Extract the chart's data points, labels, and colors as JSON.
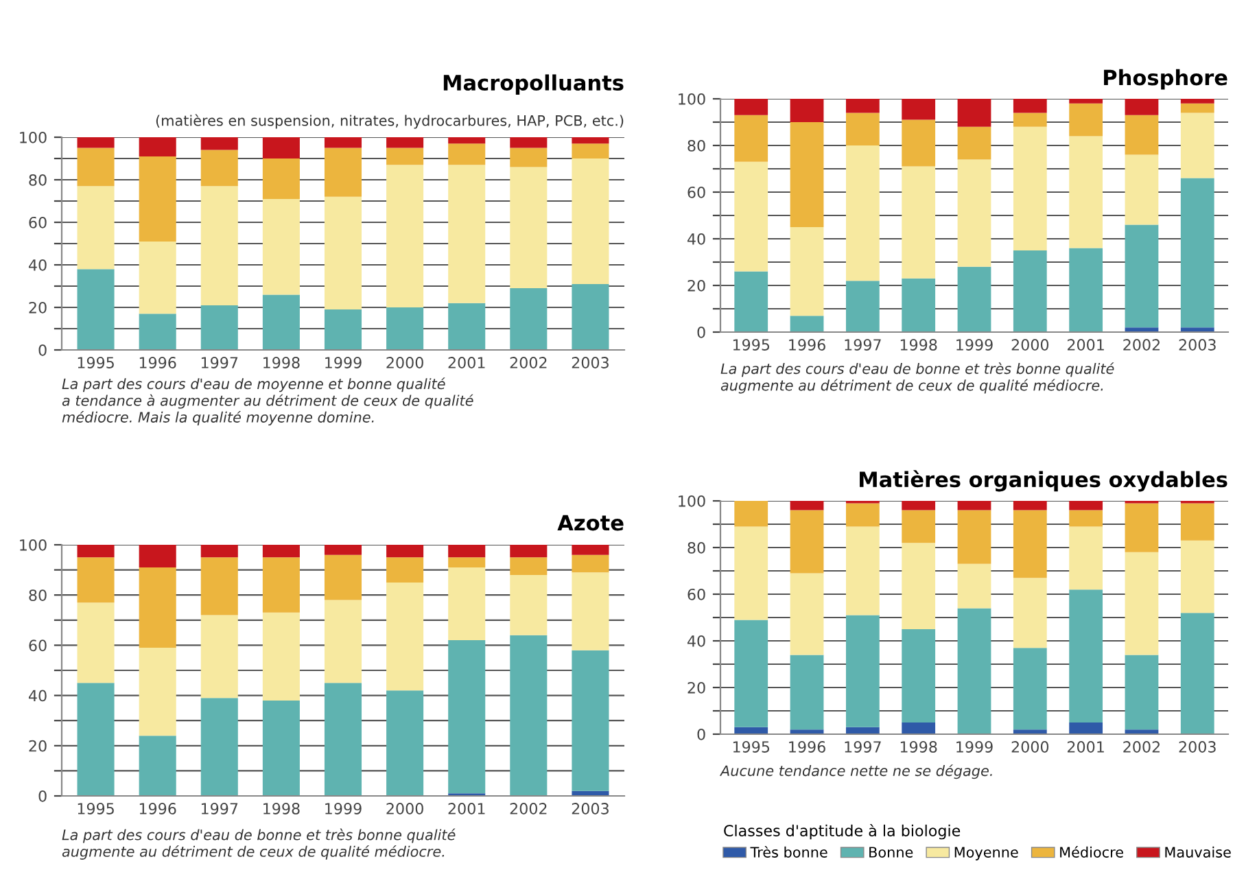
{
  "chart_data": [
    {
      "type": "bar",
      "stacked": true,
      "title": "Macropolluants",
      "subtitle": "(matières en suspension, nitrates, hydrocarbures, HAP, PCB, etc.)",
      "categories": [
        "1995",
        "1996",
        "1997",
        "1998",
        "1999",
        "2000",
        "2001",
        "2002",
        "2003"
      ],
      "ylim": [
        0,
        100
      ],
      "yticks": [
        0,
        {
          "value": 10,
          "label": null
        },
        20,
        {
          "value": 30,
          "label": null
        },
        40,
        {
          "value": 50,
          "label": null
        },
        60,
        {
          "value": 70,
          "label": null
        },
        80,
        {
          "value": 90,
          "label": null
        },
        100
      ],
      "grid": "y",
      "legend": false,
      "series": [
        {
          "color": "#2f5aa8",
          "values": [
            0,
            0,
            0,
            0,
            0,
            0,
            0,
            0,
            0
          ]
        },
        {
          "color": "#5fb3b0",
          "values": [
            38,
            17,
            21,
            26,
            19,
            20,
            22,
            29,
            31
          ]
        },
        {
          "color": "#f7e9a0",
          "values": [
            39,
            34,
            56,
            45,
            53,
            67,
            65,
            57,
            59
          ]
        },
        {
          "color": "#ecb53e",
          "values": [
            18,
            40,
            17,
            19,
            23,
            8,
            10,
            9,
            7
          ]
        },
        {
          "color": "#c8161d",
          "values": [
            5,
            9,
            6,
            10,
            5,
            5,
            3,
            5,
            3
          ]
        }
      ],
      "annotations": [
        "La part des cours d'eau de moyenne et bonne qualité\na tendance à augmenter au détriment de ceux de qualité\nmédiocre. Mais la qualité moyenne domine."
      ]
    },
    {
      "type": "bar",
      "stacked": true,
      "title": "Phosphore",
      "categories": [
        "1995",
        "1996",
        "1997",
        "1998",
        "1999",
        "2000",
        "2001",
        "2002",
        "2003"
      ],
      "ylim": [
        0,
        100
      ],
      "yticks": [
        0,
        {
          "value": 10,
          "label": null
        },
        20,
        {
          "value": 30,
          "label": null
        },
        40,
        {
          "value": 50,
          "label": null
        },
        60,
        {
          "value": 70,
          "label": null
        },
        80,
        {
          "value": 90,
          "label": null
        },
        100
      ],
      "grid": "y",
      "legend": false,
      "series": [
        {
          "color": "#2f5aa8",
          "values": [
            0,
            0,
            0,
            0,
            0,
            0,
            0,
            2,
            2
          ]
        },
        {
          "color": "#5fb3b0",
          "values": [
            26,
            7,
            22,
            23,
            28,
            35,
            36,
            44,
            64
          ]
        },
        {
          "color": "#f7e9a0",
          "values": [
            47,
            38,
            58,
            48,
            46,
            53,
            48,
            30,
            28
          ]
        },
        {
          "color": "#ecb53e",
          "values": [
            20,
            45,
            14,
            20,
            14,
            6,
            14,
            17,
            4
          ]
        },
        {
          "color": "#c8161d",
          "values": [
            7,
            10,
            6,
            9,
            12,
            6,
            2,
            7,
            2
          ]
        }
      ],
      "annotations": [
        "La part des cours d'eau de bonne et très bonne qualité\naugmente au détriment de ceux de qualité médiocre."
      ]
    },
    {
      "type": "bar",
      "stacked": true,
      "title": "Azote",
      "categories": [
        "1995",
        "1996",
        "1997",
        "1998",
        "1999",
        "2000",
        "2001",
        "2002",
        "2003"
      ],
      "ylim": [
        0,
        100
      ],
      "yticks": [
        0,
        {
          "value": 10,
          "label": null
        },
        20,
        {
          "value": 30,
          "label": null
        },
        40,
        {
          "value": 50,
          "label": null
        },
        60,
        {
          "value": 70,
          "label": null
        },
        80,
        {
          "value": 90,
          "label": null
        },
        100
      ],
      "grid": "y",
      "legend": false,
      "series": [
        {
          "color": "#2f5aa8",
          "values": [
            0,
            0,
            0,
            0,
            0,
            0,
            1,
            0,
            2
          ]
        },
        {
          "color": "#5fb3b0",
          "values": [
            45,
            24,
            39,
            38,
            45,
            42,
            61,
            64,
            56
          ]
        },
        {
          "color": "#f7e9a0",
          "values": [
            32,
            35,
            33,
            35,
            33,
            43,
            29,
            24,
            31
          ]
        },
        {
          "color": "#ecb53e",
          "values": [
            18,
            32,
            23,
            22,
            18,
            10,
            4,
            7,
            7
          ]
        },
        {
          "color": "#c8161d",
          "values": [
            5,
            9,
            5,
            5,
            4,
            5,
            5,
            5,
            4
          ]
        }
      ],
      "annotations": [
        "La part des cours d'eau de bonne et très bonne qualité\naugmente au détriment de ceux de qualité médiocre."
      ]
    },
    {
      "type": "bar",
      "stacked": true,
      "title": "Matières organiques oxydables",
      "categories": [
        "1995",
        "1996",
        "1997",
        "1998",
        "1999",
        "2000",
        "2001",
        "2002",
        "2003"
      ],
      "ylim": [
        0,
        100
      ],
      "yticks": [
        0,
        {
          "value": 10,
          "label": null
        },
        20,
        {
          "value": 30,
          "label": null
        },
        40,
        {
          "value": 50,
          "label": null
        },
        60,
        {
          "value": 70,
          "label": null
        },
        80,
        {
          "value": 90,
          "label": null
        },
        100
      ],
      "grid": "y",
      "legend": "bottom",
      "legend_title": "Classes d'aptitude à la biologie",
      "series": [
        {
          "name": "Très bonne",
          "color": "#2f5aa8",
          "values": [
            3,
            2,
            3,
            5,
            0,
            2,
            5,
            2,
            0
          ]
        },
        {
          "name": "Bonne",
          "color": "#5fb3b0",
          "values": [
            46,
            32,
            48,
            40,
            54,
            35,
            57,
            32,
            52
          ]
        },
        {
          "name": "Moyenne",
          "color": "#f7e9a0",
          "values": [
            40,
            35,
            38,
            37,
            19,
            30,
            27,
            44,
            31
          ]
        },
        {
          "name": "Médiocre",
          "color": "#ecb53e",
          "values": [
            11,
            27,
            10,
            14,
            23,
            29,
            7,
            21,
            16
          ]
        },
        {
          "name": "Mauvaise",
          "color": "#c8161d",
          "values": [
            0,
            4,
            1,
            4,
            4,
            4,
            4,
            1,
            1
          ]
        }
      ],
      "annotations": [
        "Aucune tendance nette ne se dégage."
      ]
    }
  ]
}
